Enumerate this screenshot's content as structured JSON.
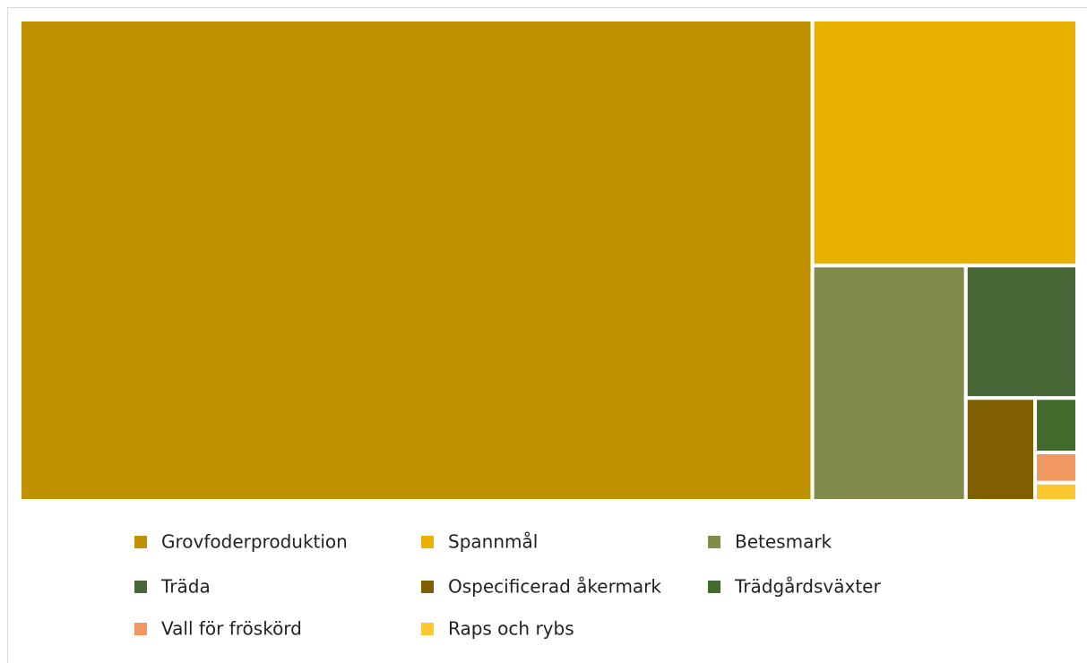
{
  "chart_data": {
    "type": "treemap",
    "series": [
      {
        "name": "Grovfoderproduktion",
        "color": "#c09200",
        "values": [
          75.0
        ]
      },
      {
        "name": "Spannmål",
        "color": "#e8b100",
        "values": [
          12.8
        ]
      },
      {
        "name": "Betesmark",
        "color": "#828b4c",
        "values": [
          7.1
        ]
      },
      {
        "name": "Träda",
        "color": "#486737",
        "values": [
          2.9
        ]
      },
      {
        "name": "Ospecificerad åkermark",
        "color": "#7f5f00",
        "values": [
          1.4
        ]
      },
      {
        "name": "Trädgårdsväxter",
        "color": "#416b2b",
        "values": [
          0.45
        ]
      },
      {
        "name": "Vall för fröskörd",
        "color": "#f0985f",
        "values": [
          0.25
        ]
      },
      {
        "name": "Raps och rybs",
        "color": "#fdc82f",
        "values": [
          0.15
        ]
      }
    ],
    "legend": "bottom"
  }
}
